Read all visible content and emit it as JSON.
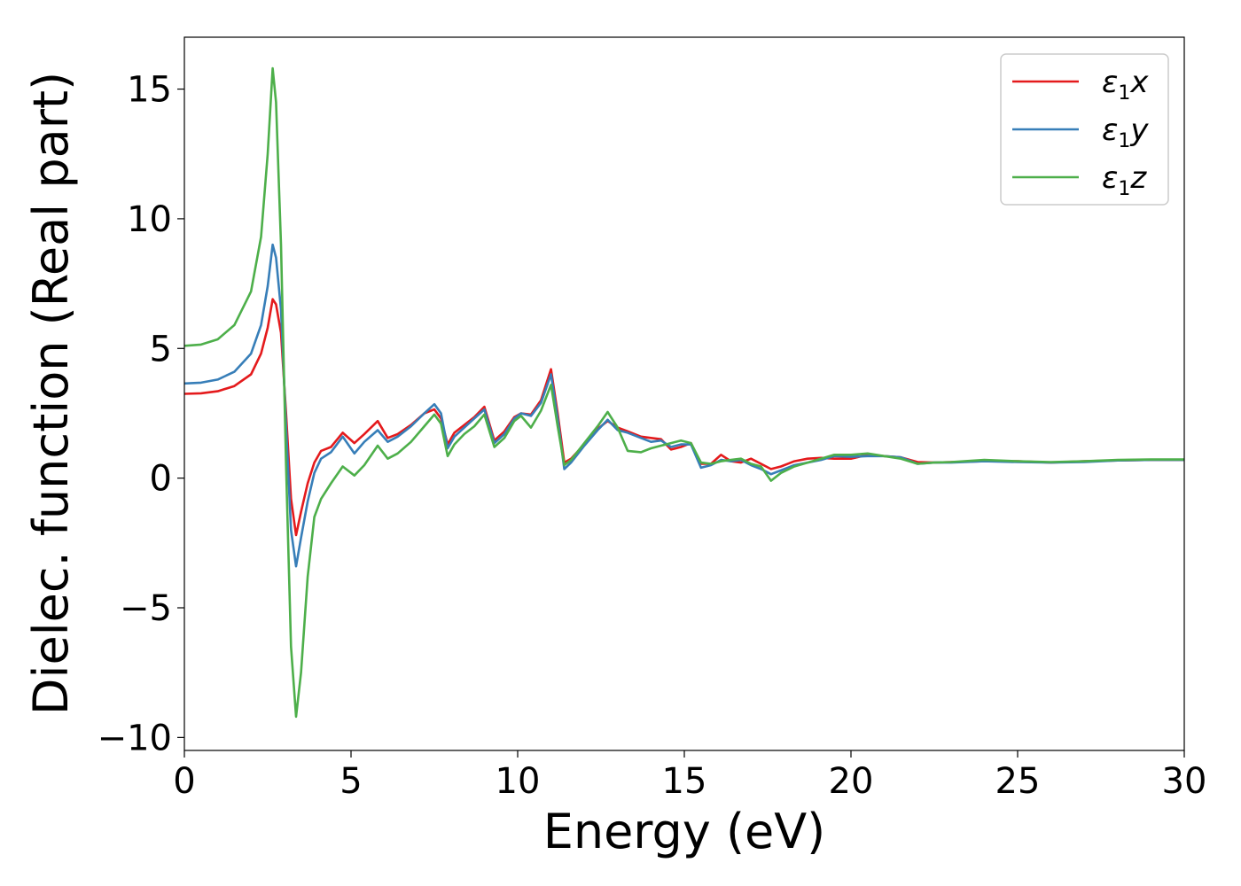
{
  "chart_data": {
    "type": "line",
    "title": "",
    "xlabel": "Energy (eV)",
    "ylabel": "Dielec. function (Real part)",
    "xlim": [
      0,
      30
    ],
    "ylim": [
      -10.5,
      17
    ],
    "x_ticks": [
      0,
      5,
      10,
      15,
      20,
      25,
      30
    ],
    "x_tick_labels": [
      "0",
      "5",
      "10",
      "15",
      "20",
      "25",
      "30"
    ],
    "y_ticks": [
      -10,
      -5,
      0,
      5,
      10,
      15
    ],
    "y_tick_labels": [
      "−10",
      "−5",
      "0",
      "5",
      "10",
      "15"
    ],
    "grid": false,
    "legend_position": "top-right",
    "series": [
      {
        "name": "ε1x",
        "legend_main": "ε",
        "legend_sub": "1",
        "legend_tail": "x",
        "color": "#e41a1c",
        "points": [
          [
            0,
            3.25
          ],
          [
            0.5,
            3.27
          ],
          [
            1,
            3.35
          ],
          [
            1.5,
            3.55
          ],
          [
            2,
            4.0
          ],
          [
            2.3,
            4.8
          ],
          [
            2.5,
            5.8
          ],
          [
            2.65,
            6.9
          ],
          [
            2.75,
            6.7
          ],
          [
            2.9,
            5.6
          ],
          [
            3.05,
            2.5
          ],
          [
            3.2,
            -0.8
          ],
          [
            3.35,
            -2.2
          ],
          [
            3.5,
            -1.3
          ],
          [
            3.7,
            -0.2
          ],
          [
            3.9,
            0.6
          ],
          [
            4.1,
            1.05
          ],
          [
            4.4,
            1.2
          ],
          [
            4.75,
            1.75
          ],
          [
            5.1,
            1.35
          ],
          [
            5.4,
            1.7
          ],
          [
            5.8,
            2.2
          ],
          [
            6.1,
            1.55
          ],
          [
            6.4,
            1.7
          ],
          [
            6.8,
            2.05
          ],
          [
            7.2,
            2.5
          ],
          [
            7.5,
            2.65
          ],
          [
            7.7,
            2.3
          ],
          [
            7.9,
            1.3
          ],
          [
            8.1,
            1.75
          ],
          [
            8.4,
            2.05
          ],
          [
            8.7,
            2.35
          ],
          [
            9.0,
            2.75
          ],
          [
            9.3,
            1.45
          ],
          [
            9.6,
            1.8
          ],
          [
            9.9,
            2.35
          ],
          [
            10.1,
            2.5
          ],
          [
            10.4,
            2.45
          ],
          [
            10.7,
            3.0
          ],
          [
            11.0,
            4.2
          ],
          [
            11.2,
            2.5
          ],
          [
            11.4,
            0.6
          ],
          [
            11.6,
            0.75
          ],
          [
            12.0,
            1.3
          ],
          [
            12.4,
            1.9
          ],
          [
            12.7,
            2.2
          ],
          [
            13.0,
            1.95
          ],
          [
            13.3,
            1.8
          ],
          [
            13.7,
            1.6
          ],
          [
            14.0,
            1.55
          ],
          [
            14.3,
            1.5
          ],
          [
            14.6,
            1.1
          ],
          [
            14.9,
            1.2
          ],
          [
            15.2,
            1.35
          ],
          [
            15.5,
            0.55
          ],
          [
            15.8,
            0.55
          ],
          [
            16.1,
            0.9
          ],
          [
            16.4,
            0.65
          ],
          [
            16.7,
            0.6
          ],
          [
            17.0,
            0.75
          ],
          [
            17.3,
            0.55
          ],
          [
            17.6,
            0.35
          ],
          [
            17.9,
            0.45
          ],
          [
            18.3,
            0.65
          ],
          [
            18.7,
            0.75
          ],
          [
            19.1,
            0.78
          ],
          [
            19.5,
            0.75
          ],
          [
            20.0,
            0.75
          ],
          [
            20.5,
            0.9
          ],
          [
            21.0,
            0.85
          ],
          [
            21.5,
            0.8
          ],
          [
            22.0,
            0.62
          ],
          [
            22.5,
            0.6
          ],
          [
            23.0,
            0.62
          ],
          [
            24.0,
            0.65
          ],
          [
            25.0,
            0.65
          ],
          [
            26.0,
            0.6
          ],
          [
            27.0,
            0.65
          ],
          [
            28.0,
            0.68
          ],
          [
            29.0,
            0.7
          ],
          [
            30.0,
            0.7
          ]
        ]
      },
      {
        "name": "ε1y",
        "legend_main": "ε",
        "legend_sub": "1",
        "legend_tail": "y",
        "color": "#377eb8",
        "points": [
          [
            0,
            3.65
          ],
          [
            0.5,
            3.68
          ],
          [
            1,
            3.8
          ],
          [
            1.5,
            4.1
          ],
          [
            2,
            4.8
          ],
          [
            2.3,
            5.9
          ],
          [
            2.5,
            7.4
          ],
          [
            2.65,
            9.0
          ],
          [
            2.75,
            8.5
          ],
          [
            2.9,
            6.5
          ],
          [
            3.05,
            2.0
          ],
          [
            3.2,
            -2.0
          ],
          [
            3.35,
            -3.4
          ],
          [
            3.5,
            -2.3
          ],
          [
            3.7,
            -0.9
          ],
          [
            3.9,
            0.2
          ],
          [
            4.1,
            0.75
          ],
          [
            4.4,
            1.0
          ],
          [
            4.75,
            1.6
          ],
          [
            5.1,
            0.95
          ],
          [
            5.4,
            1.4
          ],
          [
            5.8,
            1.85
          ],
          [
            6.1,
            1.4
          ],
          [
            6.4,
            1.6
          ],
          [
            6.8,
            2.0
          ],
          [
            7.2,
            2.5
          ],
          [
            7.5,
            2.85
          ],
          [
            7.7,
            2.5
          ],
          [
            7.9,
            1.15
          ],
          [
            8.1,
            1.6
          ],
          [
            8.4,
            1.95
          ],
          [
            8.7,
            2.3
          ],
          [
            9.0,
            2.65
          ],
          [
            9.3,
            1.35
          ],
          [
            9.6,
            1.7
          ],
          [
            9.9,
            2.3
          ],
          [
            10.1,
            2.5
          ],
          [
            10.4,
            2.4
          ],
          [
            10.7,
            2.9
          ],
          [
            11.0,
            4.0
          ],
          [
            11.2,
            2.3
          ],
          [
            11.4,
            0.35
          ],
          [
            11.6,
            0.6
          ],
          [
            12.0,
            1.25
          ],
          [
            12.4,
            1.85
          ],
          [
            12.7,
            2.25
          ],
          [
            13.0,
            1.85
          ],
          [
            13.3,
            1.75
          ],
          [
            13.7,
            1.55
          ],
          [
            14.0,
            1.4
          ],
          [
            14.3,
            1.45
          ],
          [
            14.6,
            1.2
          ],
          [
            14.9,
            1.3
          ],
          [
            15.2,
            1.3
          ],
          [
            15.5,
            0.4
          ],
          [
            15.8,
            0.5
          ],
          [
            16.1,
            0.7
          ],
          [
            16.4,
            0.65
          ],
          [
            16.7,
            0.7
          ],
          [
            17.0,
            0.5
          ],
          [
            17.3,
            0.35
          ],
          [
            17.6,
            0.15
          ],
          [
            17.9,
            0.3
          ],
          [
            18.3,
            0.5
          ],
          [
            18.7,
            0.6
          ],
          [
            19.1,
            0.7
          ],
          [
            19.5,
            0.85
          ],
          [
            20.0,
            0.82
          ],
          [
            20.5,
            0.85
          ],
          [
            21.0,
            0.85
          ],
          [
            21.5,
            0.8
          ],
          [
            22.0,
            0.55
          ],
          [
            22.5,
            0.6
          ],
          [
            23.0,
            0.6
          ],
          [
            24.0,
            0.65
          ],
          [
            25.0,
            0.62
          ],
          [
            26.0,
            0.6
          ],
          [
            27.0,
            0.62
          ],
          [
            28.0,
            0.68
          ],
          [
            29.0,
            0.7
          ],
          [
            30.0,
            0.7
          ]
        ]
      },
      {
        "name": "ε1z",
        "legend_main": "ε",
        "legend_sub": "1",
        "legend_tail": "z",
        "color": "#4daf4a",
        "points": [
          [
            0,
            5.1
          ],
          [
            0.5,
            5.15
          ],
          [
            1,
            5.35
          ],
          [
            1.5,
            5.9
          ],
          [
            2,
            7.2
          ],
          [
            2.3,
            9.3
          ],
          [
            2.5,
            12.5
          ],
          [
            2.65,
            15.8
          ],
          [
            2.75,
            14.5
          ],
          [
            2.9,
            9.0
          ],
          [
            3.05,
            0.5
          ],
          [
            3.2,
            -6.5
          ],
          [
            3.35,
            -9.2
          ],
          [
            3.5,
            -7.5
          ],
          [
            3.7,
            -3.8
          ],
          [
            3.9,
            -1.5
          ],
          [
            4.1,
            -0.8
          ],
          [
            4.4,
            -0.2
          ],
          [
            4.75,
            0.45
          ],
          [
            5.1,
            0.1
          ],
          [
            5.4,
            0.5
          ],
          [
            5.8,
            1.25
          ],
          [
            6.1,
            0.75
          ],
          [
            6.4,
            0.95
          ],
          [
            6.8,
            1.4
          ],
          [
            7.2,
            2.0
          ],
          [
            7.5,
            2.45
          ],
          [
            7.7,
            2.1
          ],
          [
            7.9,
            0.85
          ],
          [
            8.1,
            1.3
          ],
          [
            8.4,
            1.7
          ],
          [
            8.7,
            2.0
          ],
          [
            9.0,
            2.45
          ],
          [
            9.3,
            1.2
          ],
          [
            9.6,
            1.55
          ],
          [
            9.9,
            2.2
          ],
          [
            10.1,
            2.4
          ],
          [
            10.4,
            1.95
          ],
          [
            10.7,
            2.6
          ],
          [
            11.0,
            3.6
          ],
          [
            11.2,
            2.0
          ],
          [
            11.4,
            0.5
          ],
          [
            11.6,
            0.7
          ],
          [
            12.0,
            1.35
          ],
          [
            12.4,
            2.0
          ],
          [
            12.7,
            2.55
          ],
          [
            13.0,
            1.95
          ],
          [
            13.3,
            1.05
          ],
          [
            13.7,
            1.0
          ],
          [
            14.0,
            1.15
          ],
          [
            14.3,
            1.25
          ],
          [
            14.6,
            1.35
          ],
          [
            14.9,
            1.45
          ],
          [
            15.2,
            1.35
          ],
          [
            15.5,
            0.6
          ],
          [
            15.8,
            0.55
          ],
          [
            16.1,
            0.65
          ],
          [
            16.4,
            0.7
          ],
          [
            16.7,
            0.75
          ],
          [
            17.0,
            0.55
          ],
          [
            17.3,
            0.45
          ],
          [
            17.6,
            -0.1
          ],
          [
            17.9,
            0.2
          ],
          [
            18.3,
            0.45
          ],
          [
            18.7,
            0.6
          ],
          [
            19.1,
            0.75
          ],
          [
            19.5,
            0.9
          ],
          [
            20.0,
            0.9
          ],
          [
            20.5,
            0.95
          ],
          [
            21.0,
            0.85
          ],
          [
            21.5,
            0.75
          ],
          [
            22.0,
            0.55
          ],
          [
            22.5,
            0.6
          ],
          [
            23.0,
            0.62
          ],
          [
            24.0,
            0.7
          ],
          [
            25.0,
            0.65
          ],
          [
            26.0,
            0.62
          ],
          [
            27.0,
            0.65
          ],
          [
            28.0,
            0.7
          ],
          [
            29.0,
            0.72
          ],
          [
            30.0,
            0.72
          ]
        ]
      }
    ]
  }
}
